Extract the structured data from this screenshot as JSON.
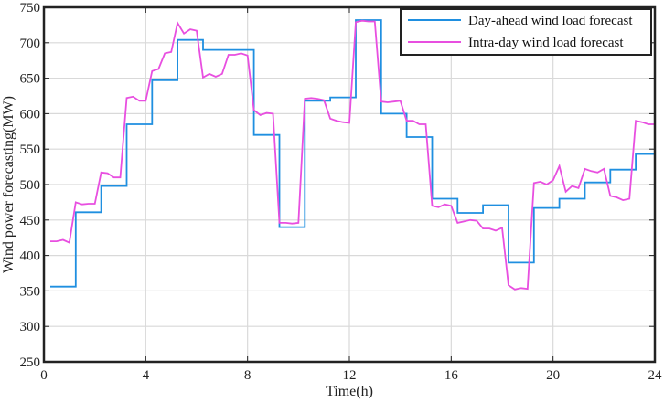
{
  "chart_data": {
    "type": "line",
    "xlabel": "Time(h)",
    "ylabel": "Wind power forecasting(MW)",
    "xlim": [
      0,
      24
    ],
    "ylim": [
      250,
      750
    ],
    "xticks": [
      0,
      4,
      8,
      12,
      16,
      20,
      24
    ],
    "yticks": [
      250,
      300,
      350,
      400,
      450,
      500,
      550,
      600,
      650,
      700,
      750
    ],
    "grid": true,
    "legend_position": "top-right",
    "series": [
      {
        "name": "Day-ahead wind load forecast",
        "color": "#1f8fe0",
        "step": true,
        "x": [
          0.25,
          1.25,
          2.25,
          3.25,
          4.25,
          5.25,
          6.25,
          7.25,
          8.25,
          9.25,
          10.25,
          11.25,
          12.25,
          13.25,
          14.25,
          15.25,
          16.25,
          17.25,
          18.25,
          19.25,
          20.25,
          21.25,
          22.25,
          23.25,
          24
        ],
        "y": [
          356,
          461,
          498,
          585,
          647,
          704,
          690,
          690,
          570,
          440,
          618,
          623,
          732,
          600,
          567,
          480,
          460,
          471,
          390,
          467,
          480,
          503,
          521,
          543,
          543
        ]
      },
      {
        "name": "Intra-day wind load forecast",
        "color": "#e84fe0",
        "step": false,
        "x": [
          0.25,
          0.5,
          0.75,
          1,
          1.25,
          1.5,
          1.75,
          2,
          2.25,
          2.5,
          2.75,
          3,
          3.25,
          3.5,
          3.75,
          4,
          4.25,
          4.5,
          4.75,
          5,
          5.25,
          5.5,
          5.75,
          6,
          6.25,
          6.5,
          6.75,
          7,
          7.25,
          7.5,
          7.75,
          8,
          8.25,
          8.5,
          8.75,
          9,
          9.25,
          9.5,
          9.75,
          10,
          10.25,
          10.5,
          10.75,
          11,
          11.25,
          11.5,
          11.75,
          12,
          12.25,
          12.5,
          12.75,
          13,
          13.25,
          13.5,
          13.75,
          14,
          14.25,
          14.5,
          14.75,
          15,
          15.25,
          15.5,
          15.75,
          16,
          16.25,
          16.5,
          16.75,
          17,
          17.25,
          17.5,
          17.75,
          18,
          18.25,
          18.5,
          18.75,
          19,
          19.25,
          19.5,
          19.75,
          20,
          20.25,
          20.5,
          20.75,
          21,
          21.25,
          21.5,
          21.75,
          22,
          22.25,
          22.5,
          22.75,
          23,
          23.25,
          23.5,
          23.75,
          24
        ],
        "y": [
          420,
          420,
          422,
          418,
          475,
          472,
          473,
          473,
          517,
          516,
          510,
          510,
          622,
          624,
          618,
          618,
          660,
          663,
          685,
          687,
          728,
          713,
          719,
          717,
          651,
          656,
          652,
          656,
          683,
          683,
          685,
          682,
          605,
          598,
          601,
          600,
          446,
          446,
          445,
          446,
          621,
          622,
          621,
          619,
          593,
          590,
          588,
          587,
          729,
          731,
          730,
          730,
          617,
          616,
          617,
          618,
          590,
          590,
          585,
          585,
          470,
          468,
          472,
          470,
          446,
          448,
          450,
          449,
          438,
          438,
          435,
          439,
          358,
          352,
          354,
          353,
          502,
          504,
          500,
          506,
          526,
          490,
          498,
          495,
          522,
          519,
          517,
          522,
          484,
          482,
          478,
          480,
          590,
          588,
          585,
          585
        ]
      }
    ]
  }
}
